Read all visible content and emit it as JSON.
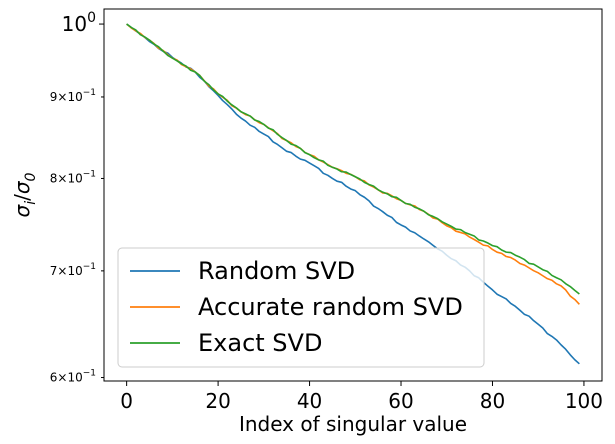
{
  "chart_data": {
    "type": "line",
    "xlabel": "Index of singular value",
    "ylabel": "σ_i/σ_0",
    "xlim": [
      -4.95,
      103.95
    ],
    "ylim": [
      0.597,
      1.022
    ],
    "yscale": "log",
    "grid": false,
    "legend_position": "lower-left",
    "x_ticks": [
      0,
      20,
      40,
      60,
      80,
      100
    ],
    "x_tick_labels": [
      "0",
      "20",
      "40",
      "60",
      "80",
      "100"
    ],
    "y_ticks": [
      {
        "value": 1.0,
        "base": "10",
        "exp": "0",
        "major": true
      },
      {
        "value": 0.9,
        "mant": "9",
        "base": "10",
        "exp": "−1",
        "major": false
      },
      {
        "value": 0.8,
        "mant": "8",
        "base": "10",
        "exp": "−1",
        "major": false
      },
      {
        "value": 0.7,
        "mant": "7",
        "base": "10",
        "exp": "−1",
        "major": false
      },
      {
        "value": 0.6,
        "mant": "6",
        "base": "10",
        "exp": "−1",
        "major": false
      }
    ],
    "series": [
      {
        "name": "Random SVD",
        "color": "#1f77b4",
        "anchors": [
          [
            0,
            1.0
          ],
          [
            2,
            0.99
          ],
          [
            5,
            0.975
          ],
          [
            10,
            0.953
          ],
          [
            15,
            0.933
          ],
          [
            20,
            0.902
          ],
          [
            25,
            0.873
          ],
          [
            30,
            0.853
          ],
          [
            35,
            0.832
          ],
          [
            40,
            0.818
          ],
          [
            45,
            0.8
          ],
          [
            50,
            0.786
          ],
          [
            55,
            0.766
          ],
          [
            60,
            0.748
          ],
          [
            65,
            0.733
          ],
          [
            70,
            0.716
          ],
          [
            75,
            0.7
          ],
          [
            80,
            0.681
          ],
          [
            85,
            0.665
          ],
          [
            90,
            0.648
          ],
          [
            95,
            0.629
          ],
          [
            99,
            0.612
          ]
        ]
      },
      {
        "name": "Accurate random SVD",
        "color": "#ff7f0e",
        "anchors": [
          [
            0,
            1.0
          ],
          [
            5,
            0.977
          ],
          [
            10,
            0.952
          ],
          [
            15,
            0.933
          ],
          [
            20,
            0.904
          ],
          [
            25,
            0.881
          ],
          [
            30,
            0.865
          ],
          [
            35,
            0.845
          ],
          [
            40,
            0.828
          ],
          [
            45,
            0.813
          ],
          [
            50,
            0.802
          ],
          [
            55,
            0.787
          ],
          [
            60,
            0.775
          ],
          [
            65,
            0.763
          ],
          [
            70,
            0.747
          ],
          [
            75,
            0.735
          ],
          [
            80,
            0.722
          ],
          [
            85,
            0.711
          ],
          [
            90,
            0.698
          ],
          [
            95,
            0.685
          ],
          [
            99,
            0.667
          ]
        ]
      },
      {
        "name": "Exact SVD",
        "color": "#2ca02c",
        "anchors": [
          [
            0,
            1.0
          ],
          [
            5,
            0.977
          ],
          [
            10,
            0.952
          ],
          [
            15,
            0.933
          ],
          [
            20,
            0.904
          ],
          [
            25,
            0.881
          ],
          [
            30,
            0.865
          ],
          [
            35,
            0.845
          ],
          [
            40,
            0.828
          ],
          [
            45,
            0.813
          ],
          [
            50,
            0.802
          ],
          [
            55,
            0.787
          ],
          [
            60,
            0.775
          ],
          [
            65,
            0.763
          ],
          [
            70,
            0.749
          ],
          [
            75,
            0.738
          ],
          [
            80,
            0.726
          ],
          [
            85,
            0.716
          ],
          [
            90,
            0.704
          ],
          [
            95,
            0.691
          ],
          [
            99,
            0.677
          ]
        ]
      }
    ]
  }
}
